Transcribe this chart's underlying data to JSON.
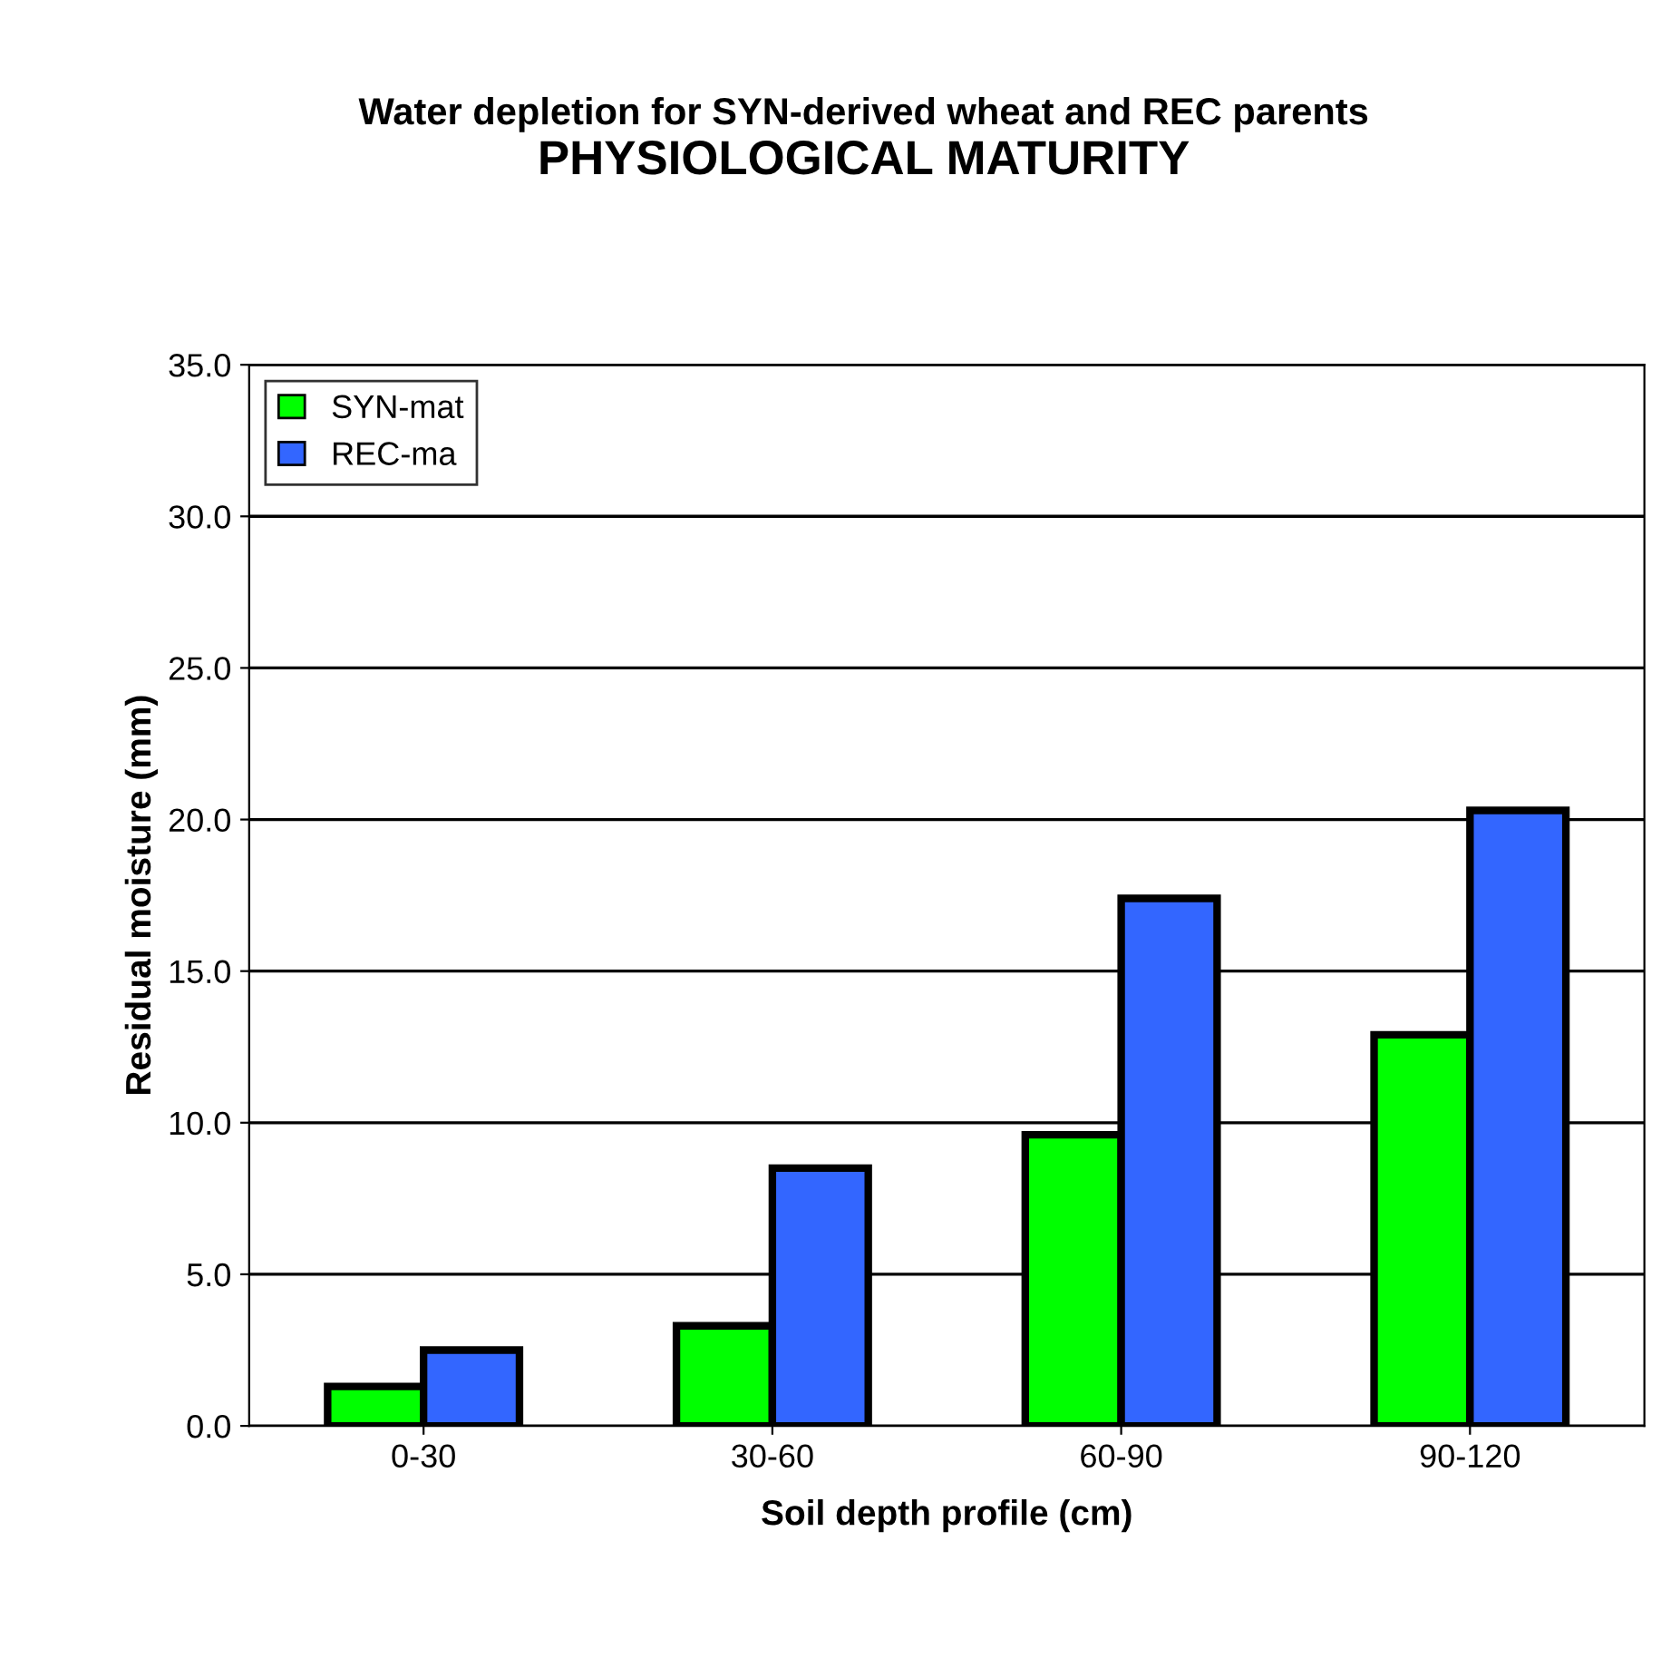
{
  "chart_data": {
    "type": "bar",
    "title": "Water depletion for SYN-derived wheat and REC parents",
    "subtitle": "PHYSIOLOGICAL MATURITY",
    "xlabel": "Soil depth profile (cm)",
    "ylabel": "Residual moisture (mm)",
    "categories": [
      "0-30",
      "30-60",
      "60-90",
      "90-120"
    ],
    "series": [
      {
        "name": "SYN-mat",
        "color": "#00ff00",
        "values": [
          1.3,
          3.3,
          9.6,
          12.9
        ]
      },
      {
        "name": "REC-ma",
        "color": "#3366ff",
        "values": [
          2.5,
          8.5,
          17.4,
          20.3
        ]
      }
    ],
    "ylim": [
      0,
      35
    ],
    "yticks": [
      {
        "value": 0,
        "label": "0.0"
      },
      {
        "value": 5,
        "label": "5.0"
      },
      {
        "value": 10,
        "label": "10.0"
      },
      {
        "value": 15,
        "label": "15.0"
      },
      {
        "value": 20,
        "label": "20.0"
      },
      {
        "value": 25,
        "label": "25.0"
      },
      {
        "value": 30,
        "label": "30.0"
      },
      {
        "value": 35,
        "label": "35.0"
      }
    ],
    "grid": "y",
    "legend": "top left"
  }
}
